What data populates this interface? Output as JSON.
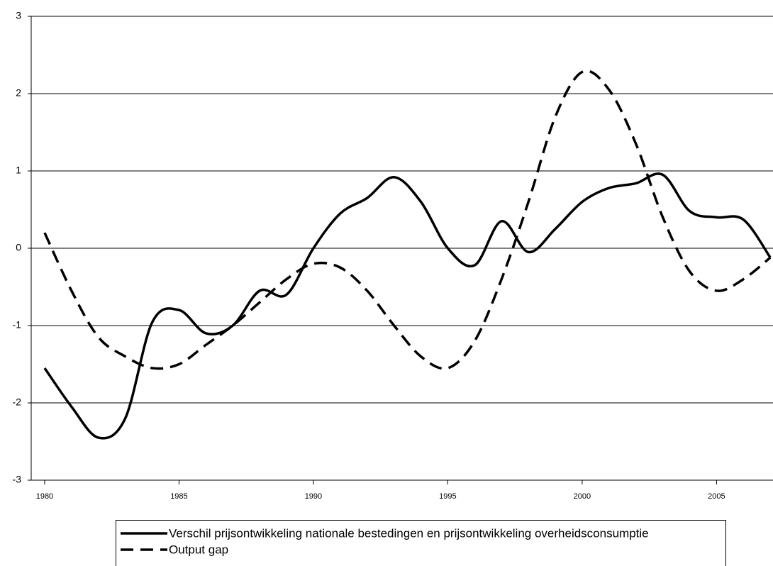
{
  "chart_data": {
    "type": "line",
    "x": [
      1980,
      1981,
      1982,
      1983,
      1984,
      1985,
      1986,
      1987,
      1988,
      1989,
      1990,
      1991,
      1992,
      1993,
      1994,
      1995,
      1996,
      1997,
      1998,
      1999,
      2000,
      2001,
      2002,
      2003,
      2004,
      2005,
      2006,
      2007
    ],
    "series": [
      {
        "name": "Verschil prijsontwikkeling nationale bestedingen en prijsontwikkeling overheidsconsumptie",
        "color": "#000000",
        "dash": "solid",
        "values": [
          -1.55,
          -2.05,
          -2.45,
          -2.2,
          -0.96,
          -0.8,
          -1.1,
          -1.0,
          -0.55,
          -0.6,
          0.0,
          0.45,
          0.65,
          0.92,
          0.6,
          0.0,
          -0.22,
          0.35,
          -0.05,
          0.25,
          0.6,
          0.78,
          0.84,
          0.95,
          0.48,
          0.4,
          0.37,
          -0.12
        ]
      },
      {
        "name": "Output gap",
        "color": "#000000",
        "dash": "dashed",
        "values": [
          0.2,
          -0.55,
          -1.15,
          -1.4,
          -1.55,
          -1.5,
          -1.25,
          -1.0,
          -0.7,
          -0.4,
          -0.2,
          -0.25,
          -0.55,
          -1.0,
          -1.4,
          -1.55,
          -1.2,
          -0.4,
          0.6,
          1.7,
          2.28,
          2.05,
          1.35,
          0.4,
          -0.3,
          -0.55,
          -0.4,
          -0.12
        ]
      }
    ],
    "xlim": [
      1979.5,
      2007.1
    ],
    "xticks": [
      1980,
      1985,
      1990,
      1995,
      2000,
      2005
    ],
    "ylim": [
      -3,
      3
    ],
    "yticks": [
      -3,
      -2,
      -1,
      0,
      1,
      2,
      3
    ],
    "grid": true,
    "legend": "bottom"
  }
}
